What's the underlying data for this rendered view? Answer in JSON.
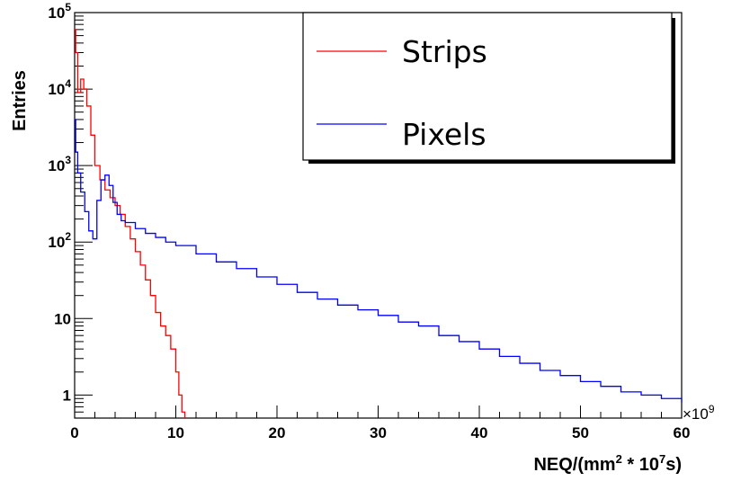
{
  "chart_data": {
    "type": "line",
    "title": "",
    "xlabel": {
      "base": "NEQ/(mm",
      "sup1": "2",
      "mid": " * 10",
      "sup2": "7",
      "tail": "s)"
    },
    "ylabel": "Entries",
    "x_multiplier": {
      "prefix": "×10",
      "exp": "9"
    },
    "xlim": [
      0,
      60
    ],
    "ylim": [
      0.5,
      100000
    ],
    "yscale": "log",
    "x_ticks": [
      "0",
      "10",
      "20",
      "30",
      "40",
      "50",
      "60"
    ],
    "y_ticks": [
      {
        "value": 1,
        "base": "1",
        "exp": ""
      },
      {
        "value": 10,
        "base": "10",
        "exp": ""
      },
      {
        "value": 100,
        "base": "10",
        "exp": "2"
      },
      {
        "value": 1000,
        "base": "10",
        "exp": "3"
      },
      {
        "value": 10000,
        "base": "10",
        "exp": "4"
      },
      {
        "value": 100000,
        "base": "10",
        "exp": "5"
      }
    ],
    "series": [
      {
        "name": "Strips",
        "color": "#ff0000",
        "x": [
          0.0,
          0.1,
          0.3,
          0.6,
          0.9,
          1.2,
          1.6,
          2.0,
          2.5,
          3.0,
          3.5,
          4.0,
          4.5,
          5.0,
          5.5,
          6.0,
          6.5,
          7.0,
          7.5,
          8.0,
          8.5,
          9.0,
          9.5,
          10.0,
          10.3,
          10.6,
          10.9
        ],
        "values": [
          60000,
          30000,
          9000,
          13500,
          10000,
          6000,
          2500,
          1000,
          650,
          480,
          380,
          300,
          230,
          160,
          110,
          75,
          50,
          32,
          20,
          12,
          8,
          6,
          4,
          2,
          1,
          0.6,
          0.5
        ]
      },
      {
        "name": "Pixels",
        "color": "#0000ff",
        "x": [
          0.0,
          0.1,
          0.3,
          0.6,
          1.0,
          1.4,
          1.8,
          2.2,
          2.6,
          3.0,
          3.4,
          3.8,
          4.2,
          4.6,
          5.0,
          6.0,
          7.0,
          8.0,
          9.0,
          10.0,
          12.0,
          14.0,
          16.0,
          18.0,
          20.0,
          22.0,
          24.0,
          26.0,
          28.0,
          30.0,
          32.0,
          34.0,
          36.0,
          38.0,
          40.0,
          42.0,
          44.0,
          46.0,
          48.0,
          50.0,
          52.0,
          54.0,
          56.0,
          58.0,
          60.0
        ],
        "values": [
          4000,
          1500,
          800,
          450,
          250,
          140,
          110,
          350,
          650,
          750,
          550,
          330,
          230,
          190,
          180,
          150,
          130,
          115,
          100,
          90,
          70,
          55,
          45,
          35,
          28,
          22,
          18,
          15,
          13,
          11,
          9,
          8,
          6,
          5,
          4,
          3.2,
          2.6,
          2.1,
          1.8,
          1.5,
          1.3,
          1.1,
          1.0,
          0.9,
          0.8
        ]
      }
    ],
    "legend": {
      "position": "top-right",
      "entries": [
        "Strips",
        "Pixels"
      ]
    }
  }
}
